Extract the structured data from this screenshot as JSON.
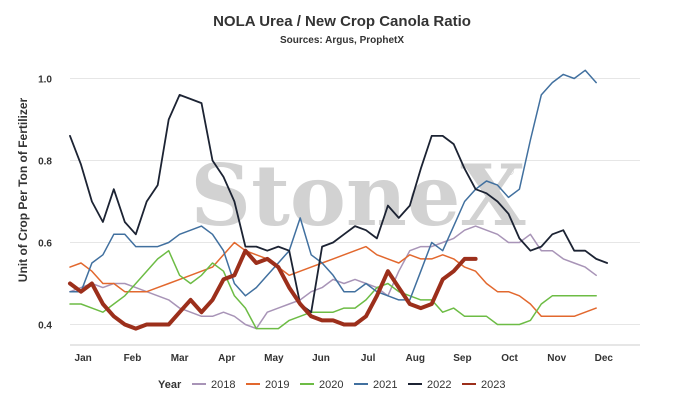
{
  "chart_data": {
    "type": "line",
    "title": "NOLA Urea / New Crop Canola Ratio",
    "subtitle": "Sources: Argus, ProphetX",
    "ylabel": "Unit of Crop Per Ton of Fertilizer",
    "xlabel": "",
    "watermark": "StoneX",
    "watermark_mark": "®",
    "ylim": [
      0.35,
      1.05
    ],
    "yticks": [
      0.4,
      0.6,
      0.8,
      1.0
    ],
    "ytick_labels": [
      "0.4",
      "0.6",
      "0.8",
      "1.0"
    ],
    "xlim": [
      0,
      52
    ],
    "month_labels": [
      "Jan",
      "Feb",
      "Mar",
      "Apr",
      "May",
      "Jun",
      "Jul",
      "Aug",
      "Sep",
      "Oct",
      "Nov",
      "Dec"
    ],
    "month_positions": [
      1.2,
      5.7,
      10.0,
      14.3,
      18.6,
      22.9,
      27.2,
      31.5,
      35.8,
      40.1,
      44.4,
      48.7
    ],
    "grid": true,
    "legend": {
      "title": "Year",
      "placement": "bottom"
    },
    "series": [
      {
        "name": "2018",
        "color": "#a894b7",
        "width": 1.5,
        "x_start": 0,
        "values": [
          0.48,
          0.49,
          0.5,
          0.49,
          0.5,
          0.5,
          0.49,
          0.48,
          0.47,
          0.46,
          0.44,
          0.43,
          0.42,
          0.42,
          0.43,
          0.42,
          0.4,
          0.39,
          0.43,
          0.44,
          0.45,
          0.46,
          0.48,
          0.49,
          0.51,
          0.5,
          0.51,
          0.5,
          0.49,
          0.47,
          0.53,
          0.58,
          0.59,
          0.59,
          0.6,
          0.61,
          0.63,
          0.64,
          0.63,
          0.62,
          0.6,
          0.6,
          0.62,
          0.58,
          0.58,
          0.56,
          0.55,
          0.54,
          0.52
        ]
      },
      {
        "name": "2019",
        "color": "#e2682e",
        "width": 1.5,
        "x_start": 0,
        "values": [
          0.54,
          0.55,
          0.53,
          0.5,
          0.5,
          0.48,
          0.48,
          0.48,
          0.49,
          0.5,
          0.51,
          0.52,
          0.53,
          0.54,
          0.57,
          0.6,
          0.58,
          0.57,
          0.56,
          0.54,
          0.52,
          0.53,
          0.54,
          0.55,
          0.56,
          0.57,
          0.58,
          0.59,
          0.57,
          0.56,
          0.55,
          0.57,
          0.56,
          0.56,
          0.57,
          0.56,
          0.54,
          0.53,
          0.5,
          0.48,
          0.48,
          0.47,
          0.45,
          0.42,
          0.42,
          0.42,
          0.42,
          0.43,
          0.44
        ]
      },
      {
        "name": "2020",
        "color": "#6dbc45",
        "width": 1.5,
        "x_start": 0,
        "values": [
          0.45,
          0.45,
          0.44,
          0.43,
          0.45,
          0.47,
          0.5,
          0.53,
          0.56,
          0.58,
          0.52,
          0.5,
          0.52,
          0.55,
          0.53,
          0.47,
          0.44,
          0.39,
          0.39,
          0.39,
          0.41,
          0.42,
          0.43,
          0.43,
          0.43,
          0.44,
          0.44,
          0.46,
          0.49,
          0.5,
          0.48,
          0.47,
          0.46,
          0.46,
          0.43,
          0.44,
          0.42,
          0.42,
          0.42,
          0.4,
          0.4,
          0.4,
          0.41,
          0.45,
          0.47,
          0.47,
          0.47,
          0.47,
          0.47
        ]
      },
      {
        "name": "2021",
        "color": "#41709f",
        "width": 1.5,
        "x_start": 0,
        "values": [
          0.48,
          0.48,
          0.55,
          0.57,
          0.62,
          0.62,
          0.59,
          0.59,
          0.59,
          0.6,
          0.62,
          0.63,
          0.64,
          0.62,
          0.58,
          0.5,
          0.47,
          0.49,
          0.52,
          0.55,
          0.58,
          0.66,
          0.57,
          0.55,
          0.52,
          0.48,
          0.48,
          0.5,
          0.48,
          0.47,
          0.46,
          0.46,
          0.53,
          0.6,
          0.58,
          0.64,
          0.7,
          0.73,
          0.75,
          0.74,
          0.71,
          0.73,
          0.85,
          0.96,
          0.99,
          1.01,
          1.0,
          1.02,
          0.99
        ]
      },
      {
        "name": "2022",
        "color": "#1c2333",
        "width": 1.8,
        "x_start": 0,
        "values": [
          0.86,
          0.79,
          0.7,
          0.65,
          0.73,
          0.65,
          0.62,
          0.7,
          0.74,
          0.9,
          0.96,
          0.95,
          0.94,
          0.8,
          0.76,
          0.7,
          0.59,
          0.59,
          0.58,
          0.59,
          0.58,
          0.45,
          0.43,
          0.59,
          0.6,
          0.62,
          0.64,
          0.63,
          0.61,
          0.69,
          0.66,
          0.69,
          0.78,
          0.86,
          0.86,
          0.84,
          0.78,
          0.73,
          0.72,
          0.7,
          0.67,
          0.61,
          0.58,
          0.59,
          0.62,
          0.63,
          0.58,
          0.58,
          0.56,
          0.55
        ]
      },
      {
        "name": "2023",
        "color": "#9c2f1b",
        "width": 4.0,
        "x_start": 0,
        "values": [
          0.5,
          0.48,
          0.5,
          0.45,
          0.42,
          0.4,
          0.39,
          0.4,
          0.4,
          0.4,
          0.43,
          0.46,
          0.43,
          0.46,
          0.51,
          0.52,
          0.58,
          0.55,
          0.56,
          0.54,
          0.49,
          0.45,
          0.42,
          0.41,
          0.41,
          0.4,
          0.4,
          0.42,
          0.47,
          0.53,
          0.49,
          0.45,
          0.44,
          0.45,
          0.51,
          0.53,
          0.56,
          0.56
        ]
      }
    ]
  }
}
